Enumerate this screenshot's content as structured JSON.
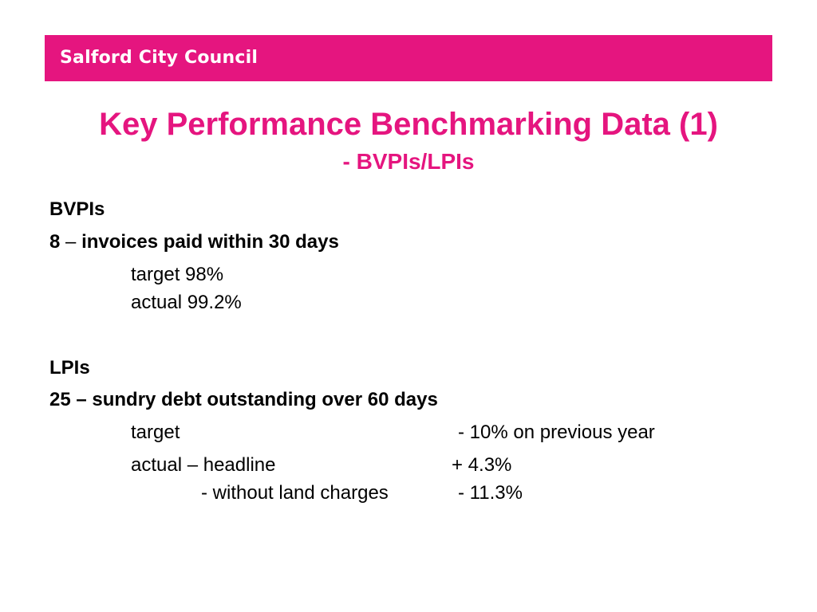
{
  "header": {
    "organisation": "Salford City Council",
    "brand_color": "#e5157f",
    "text_color": "#ffffff"
  },
  "title": {
    "main": "Key Performance Benchmarking Data (1)",
    "sub": "- BVPIs/LPIs",
    "color": "#e5157f"
  },
  "bvpis": {
    "heading": "BVPIs",
    "indicator_number": "8",
    "dash": "–",
    "indicator_text": "invoices paid within 30 days",
    "target": "target 98%",
    "actual": "actual 99.2%"
  },
  "lpis": {
    "heading": "LPIs",
    "indicator": "25 – sundry debt outstanding over 60 days",
    "target_label": "target",
    "target_value": "- 10% on previous year",
    "actual_label": "actual – headline",
    "actual_value": "+ 4.3%",
    "land_label": "- without land charges",
    "land_value": "- 11.3%"
  }
}
